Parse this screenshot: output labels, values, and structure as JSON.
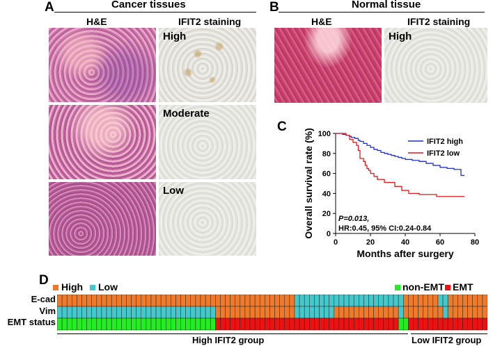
{
  "panel_a": {
    "label": "A",
    "title": "Cancer tissues",
    "col_he": "H&E",
    "col_ihc": "IFIT2 staining",
    "rows": [
      {
        "label": "High"
      },
      {
        "label": "Moderate"
      },
      {
        "label": "Low"
      }
    ]
  },
  "panel_b": {
    "label": "B",
    "title": "Normal tissue",
    "col_he": "H&E",
    "col_ihc": "IFIT2 staining",
    "row_label": "High"
  },
  "panel_c": {
    "label": "C"
  },
  "panel_d": {
    "label": "D",
    "legend_high": "High",
    "legend_low": "Low",
    "legend_non_emt": "non-EMT",
    "legend_emt": "EMT",
    "row_labels": [
      "E-cad",
      "Vim",
      "EMT status"
    ],
    "group_high": "High IFIT2 group",
    "group_low": "Low IFIT2 group",
    "colors": {
      "high": "#ee7a2a",
      "low": "#45c8cc",
      "non_emt": "#22ee22",
      "emt": "#ee1111"
    },
    "counts": {
      "high_group": 69,
      "low_group": 18
    }
  },
  "chart_data": {
    "type": "line",
    "title": "",
    "xlabel": "Months after surgery",
    "ylabel": "Overall survival rate (%)",
    "xlim": [
      0,
      80
    ],
    "ylim": [
      0,
      100
    ],
    "xticks": [
      0,
      20,
      40,
      60,
      80
    ],
    "yticks": [
      0,
      20,
      40,
      60,
      80,
      100
    ],
    "legend": "top-right",
    "annotation_p": "P=0.013,",
    "annotation_hr": "HR:0.45, 95% CI:0.24-0.84",
    "series": [
      {
        "name": "IFIT2 high",
        "color": "#1f2fcf",
        "x": [
          0,
          4,
          6,
          8,
          9,
          11,
          13,
          14,
          16,
          18,
          20,
          22,
          24,
          26,
          28,
          30,
          32,
          34,
          36,
          38,
          40,
          44,
          48,
          52,
          56,
          60,
          64,
          68,
          72,
          74
        ],
        "y": [
          100,
          99,
          98,
          97,
          96,
          95,
          93,
          92,
          90,
          88,
          86,
          84,
          83,
          81,
          80,
          79,
          78,
          77,
          76,
          75,
          74,
          73,
          72,
          70,
          68,
          66,
          65,
          64,
          58,
          58
        ]
      },
      {
        "name": "IFIT2 low",
        "color": "#e31a1a",
        "x": [
          0,
          6,
          8,
          10,
          12,
          13,
          14,
          16,
          17,
          18,
          19,
          20,
          22,
          24,
          28,
          34,
          38,
          42,
          48,
          58,
          66,
          74
        ],
        "y": [
          100,
          98,
          94,
          91,
          88,
          83,
          75,
          72,
          68,
          65,
          63,
          60,
          57,
          54,
          51,
          47,
          43,
          40,
          39,
          37,
          37,
          37
        ]
      }
    ]
  }
}
